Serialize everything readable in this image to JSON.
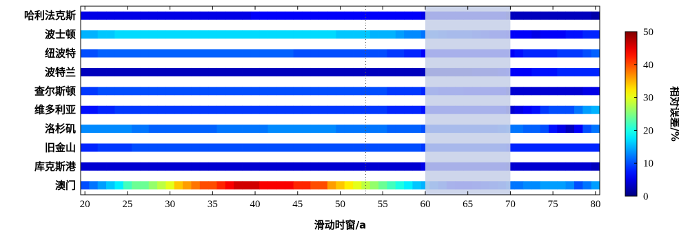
{
  "chart_data": {
    "type": "heatmap",
    "xlabel": "滑动时窗/a",
    "colorbar_label": "相对误差/%",
    "xlim": [
      19.5,
      80.5
    ],
    "x_ticks": [
      20,
      25,
      30,
      35,
      40,
      45,
      50,
      55,
      60,
      65,
      70,
      75,
      80
    ],
    "color_range": [
      0,
      50
    ],
    "colorbar_ticks": [
      0,
      10,
      20,
      30,
      40,
      50
    ],
    "colormap": "jet",
    "highlight_x_range": [
      60,
      70
    ],
    "highlight_color": "#c5cfe8",
    "reference_line_x": 53,
    "cells_per_row": 61,
    "x_start": 20,
    "series": [
      {
        "name": "哈利法克斯",
        "values": [
          5,
          5,
          5,
          5,
          5,
          5,
          5,
          5,
          5,
          5,
          5,
          5,
          5,
          5,
          5,
          5,
          5,
          5,
          5,
          5,
          6,
          6,
          6,
          6,
          6,
          6,
          6,
          6,
          6,
          6,
          6,
          6,
          6,
          6,
          6,
          6,
          6,
          6,
          6,
          6,
          5,
          5,
          5,
          5,
          5,
          5,
          5,
          5,
          5,
          5,
          3,
          3,
          3,
          3,
          3,
          3,
          3,
          3,
          3,
          3,
          2
        ]
      },
      {
        "name": "波士顿",
        "values": [
          15,
          15,
          16,
          16,
          17,
          17,
          17,
          17,
          17,
          17,
          17,
          17,
          17,
          17,
          17,
          17,
          17,
          17,
          17,
          17,
          17,
          17,
          17,
          17,
          17,
          17,
          17,
          17,
          17,
          17,
          16,
          16,
          16,
          16,
          15,
          15,
          15,
          14,
          13,
          13,
          12,
          12,
          11,
          10,
          10,
          10,
          9,
          8,
          7,
          7,
          6,
          6,
          6,
          5,
          6,
          6,
          6,
          7,
          7,
          8,
          8
        ]
      },
      {
        "name": "纽波特",
        "values": [
          10,
          10,
          11,
          11,
          11,
          11,
          11,
          11,
          11,
          11,
          11,
          11,
          11,
          11,
          11,
          11,
          11,
          11,
          11,
          11,
          11,
          11,
          11,
          11,
          11,
          10,
          10,
          10,
          10,
          10,
          10,
          10,
          10,
          10,
          10,
          10,
          9,
          9,
          8,
          8,
          6,
          6,
          6,
          6,
          6,
          6,
          6,
          6,
          6,
          6,
          6,
          7,
          8,
          8,
          8,
          8,
          9,
          9,
          9,
          10,
          11
        ]
      },
      {
        "name": "波特兰",
        "values": [
          3,
          3,
          3,
          3,
          3,
          3,
          3,
          3,
          3,
          3,
          3,
          3,
          3,
          3,
          3,
          3,
          3,
          3,
          3,
          3,
          3,
          3,
          3,
          3,
          3,
          3,
          3,
          3,
          3,
          3,
          3,
          3,
          3,
          3,
          3,
          3,
          3,
          3,
          3,
          3,
          3,
          3,
          3,
          3,
          3,
          3,
          4,
          4,
          4,
          5,
          6,
          6,
          6,
          7,
          7,
          7,
          8,
          8,
          8,
          8,
          8
        ]
      },
      {
        "name": "查尔斯顿",
        "values": [
          9,
          9,
          10,
          10,
          10,
          10,
          10,
          10,
          10,
          10,
          10,
          10,
          10,
          10,
          10,
          10,
          10,
          10,
          10,
          10,
          10,
          10,
          10,
          10,
          10,
          10,
          10,
          10,
          10,
          10,
          10,
          10,
          10,
          10,
          10,
          10,
          9,
          9,
          9,
          9,
          8,
          8,
          7,
          7,
          7,
          6,
          6,
          6,
          6,
          6,
          4,
          4,
          4,
          4,
          4,
          4,
          4,
          4,
          4,
          5,
          5
        ]
      },
      {
        "name": "维多利亚",
        "values": [
          7,
          7,
          8,
          8,
          9,
          9,
          9,
          9,
          9,
          9,
          9,
          9,
          9,
          9,
          9,
          9,
          9,
          9,
          9,
          9,
          9,
          9,
          9,
          9,
          9,
          9,
          9,
          9,
          9,
          9,
          9,
          9,
          9,
          9,
          9,
          9,
          8,
          8,
          8,
          8,
          7,
          7,
          7,
          7,
          7,
          7,
          7,
          7,
          7,
          7,
          4,
          5,
          6,
          7,
          9,
          10,
          10,
          10,
          12,
          14,
          15
        ]
      },
      {
        "name": "洛杉矶",
        "values": [
          13,
          13,
          13,
          13,
          13,
          13,
          12,
          12,
          11,
          11,
          11,
          11,
          11,
          11,
          11,
          11,
          12,
          12,
          12,
          12,
          12,
          12,
          13,
          13,
          13,
          13,
          13,
          13,
          13,
          13,
          12,
          12,
          12,
          12,
          12,
          12,
          11,
          11,
          11,
          11,
          10,
          10,
          10,
          10,
          10,
          10,
          10,
          10,
          10,
          11,
          12,
          12,
          11,
          11,
          10,
          7,
          5,
          3,
          6,
          10,
          12
        ]
      },
      {
        "name": "旧金山",
        "values": [
          8,
          8,
          9,
          9,
          9,
          9,
          10,
          10,
          10,
          10,
          10,
          10,
          10,
          10,
          10,
          10,
          10,
          10,
          10,
          10,
          10,
          10,
          10,
          10,
          10,
          10,
          10,
          10,
          10,
          10,
          10,
          10,
          10,
          10,
          10,
          10,
          10,
          10,
          10,
          10,
          9,
          9,
          9,
          9,
          9,
          9,
          9,
          9,
          9,
          9,
          8,
          8,
          8,
          8,
          8,
          8,
          8,
          8,
          8,
          8,
          8
        ]
      },
      {
        "name": "库克斯港",
        "values": [
          4,
          4,
          4,
          4,
          4,
          4,
          4,
          4,
          4,
          4,
          4,
          4,
          4,
          4,
          4,
          4,
          4,
          4,
          4,
          4,
          4,
          4,
          4,
          4,
          4,
          4,
          4,
          4,
          4,
          4,
          4,
          4,
          4,
          4,
          4,
          4,
          4,
          4,
          4,
          4,
          5,
          5,
          5,
          5,
          5,
          5,
          5,
          5,
          5,
          5,
          4,
          4,
          4,
          4,
          4,
          4,
          4,
          4,
          4,
          4,
          3
        ]
      },
      {
        "name": "澳门",
        "values": [
          10,
          12,
          14,
          16,
          18,
          22,
          24,
          24,
          26,
          28,
          30,
          34,
          36,
          38,
          40,
          40,
          42,
          44,
          46,
          46,
          46,
          44,
          44,
          44,
          44,
          42,
          42,
          40,
          40,
          36,
          34,
          32,
          30,
          28,
          26,
          24,
          22,
          20,
          18,
          16,
          15,
          12,
          10,
          7,
          6,
          6,
          7,
          8,
          9,
          10,
          12,
          12,
          13,
          13,
          14,
          14,
          14,
          13,
          10,
          12,
          14
        ]
      }
    ]
  }
}
